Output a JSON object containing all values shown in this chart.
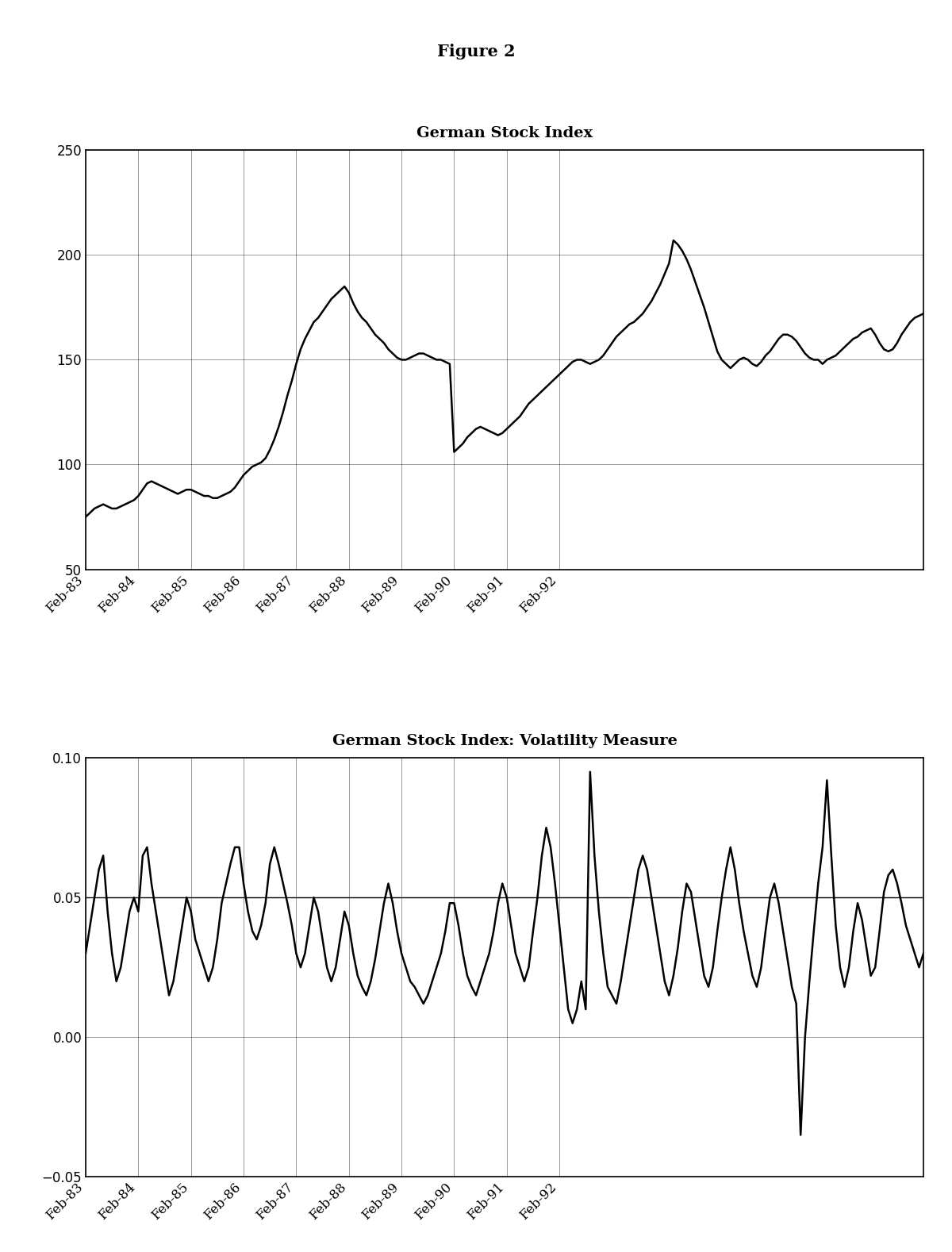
{
  "figure_title": "Figure 2",
  "plot1_title": "German Stock Index",
  "plot2_title": "German Stock Index: Volatility Measure",
  "background_color": "#ffffff",
  "line_color": "#000000",
  "grid_color": "#555555",
  "plot1_ylim": [
    50,
    250
  ],
  "plot1_yticks": [
    50,
    100,
    150,
    200,
    250
  ],
  "plot2_ylim": [
    -0.05,
    0.1
  ],
  "plot2_yticks": [
    -0.05,
    0.0,
    0.05,
    0.1
  ],
  "x_tick_labels": [
    "Feb-83",
    "Feb-84",
    "Feb-85",
    "Feb-86",
    "Feb-87",
    "Feb-88",
    "Feb-89",
    "Feb-90",
    "Feb-91",
    "Feb-92"
  ],
  "line_width": 1.8,
  "font_family": "serif",
  "title_fontsize": 15,
  "subtitle_fontsize": 14,
  "tick_fontsize": 12,
  "plot1_data": [
    75,
    77,
    79,
    80,
    81,
    80,
    79,
    79,
    80,
    81,
    82,
    83,
    85,
    88,
    91,
    92,
    91,
    90,
    89,
    88,
    87,
    86,
    87,
    88,
    88,
    87,
    86,
    85,
    85,
    84,
    84,
    85,
    86,
    87,
    89,
    92,
    95,
    97,
    99,
    100,
    101,
    103,
    107,
    112,
    118,
    125,
    133,
    140,
    148,
    155,
    160,
    164,
    168,
    170,
    173,
    176,
    179,
    181,
    183,
    185,
    182,
    177,
    173,
    170,
    168,
    165,
    162,
    160,
    158,
    155,
    153,
    151,
    150,
    150,
    151,
    152,
    153,
    153,
    152,
    151,
    150,
    150,
    149,
    148,
    106,
    108,
    110,
    113,
    115,
    117,
    118,
    117,
    116,
    115,
    114,
    115,
    117,
    119,
    121,
    123,
    126,
    129,
    131,
    133,
    135,
    137,
    139,
    141,
    143,
    145,
    147,
    149,
    150,
    150,
    149,
    148,
    149,
    150,
    152,
    155,
    158,
    161,
    163,
    165,
    167,
    168,
    170,
    172,
    175,
    178,
    182,
    186,
    191,
    196,
    207,
    205,
    202,
    198,
    193,
    187,
    181,
    175,
    168,
    161,
    154,
    150,
    148,
    146,
    148,
    150,
    151,
    150,
    148,
    147,
    149,
    152,
    154,
    157,
    160,
    162,
    162,
    161,
    159,
    156,
    153,
    151,
    150,
    150,
    148,
    150,
    151,
    152,
    154,
    156,
    158,
    160,
    161,
    163,
    164,
    165,
    162,
    158,
    155,
    154,
    155,
    158,
    162,
    165,
    168,
    170,
    171,
    172
  ],
  "plot2_data": [
    0.03,
    0.04,
    0.05,
    0.06,
    0.065,
    0.045,
    0.03,
    0.02,
    0.025,
    0.035,
    0.045,
    0.05,
    0.045,
    0.065,
    0.068,
    0.055,
    0.045,
    0.035,
    0.025,
    0.015,
    0.02,
    0.03,
    0.04,
    0.05,
    0.045,
    0.035,
    0.03,
    0.025,
    0.02,
    0.025,
    0.035,
    0.048,
    0.055,
    0.062,
    0.068,
    0.068,
    0.055,
    0.045,
    0.038,
    0.035,
    0.04,
    0.048,
    0.062,
    0.068,
    0.062,
    0.055,
    0.048,
    0.04,
    0.03,
    0.025,
    0.03,
    0.04,
    0.05,
    0.045,
    0.035,
    0.025,
    0.02,
    0.025,
    0.035,
    0.045,
    0.04,
    0.03,
    0.022,
    0.018,
    0.015,
    0.02,
    0.028,
    0.038,
    0.048,
    0.055,
    0.048,
    0.038,
    0.03,
    0.025,
    0.02,
    0.018,
    0.015,
    0.012,
    0.015,
    0.02,
    0.025,
    0.03,
    0.038,
    0.048,
    0.048,
    0.04,
    0.03,
    0.022,
    0.018,
    0.015,
    0.02,
    0.025,
    0.03,
    0.038,
    0.048,
    0.055,
    0.05,
    0.04,
    0.03,
    0.025,
    0.02,
    0.025,
    0.038,
    0.05,
    0.065,
    0.075,
    0.068,
    0.055,
    0.04,
    0.025,
    0.01,
    0.005,
    0.01,
    0.02,
    0.01,
    0.095,
    0.065,
    0.045,
    0.03,
    0.018,
    0.015,
    0.012,
    0.02,
    0.03,
    0.04,
    0.05,
    0.06,
    0.065,
    0.06,
    0.05,
    0.04,
    0.03,
    0.02,
    0.015,
    0.022,
    0.032,
    0.045,
    0.055,
    0.052,
    0.042,
    0.032,
    0.022,
    0.018,
    0.025,
    0.038,
    0.05,
    0.06,
    0.068,
    0.06,
    0.048,
    0.038,
    0.03,
    0.022,
    0.018,
    0.025,
    0.038,
    0.05,
    0.055,
    0.048,
    0.038,
    0.028,
    0.018,
    0.012,
    -0.035,
    0.0,
    0.02,
    0.038,
    0.055,
    0.068,
    0.092,
    0.065,
    0.04,
    0.025,
    0.018,
    0.025,
    0.038,
    0.048,
    0.042,
    0.032,
    0.022,
    0.025,
    0.038,
    0.052,
    0.058,
    0.06,
    0.055,
    0.048,
    0.04,
    0.035,
    0.03,
    0.025,
    0.03
  ],
  "volatility_hline": 0.05,
  "n_points": 192
}
